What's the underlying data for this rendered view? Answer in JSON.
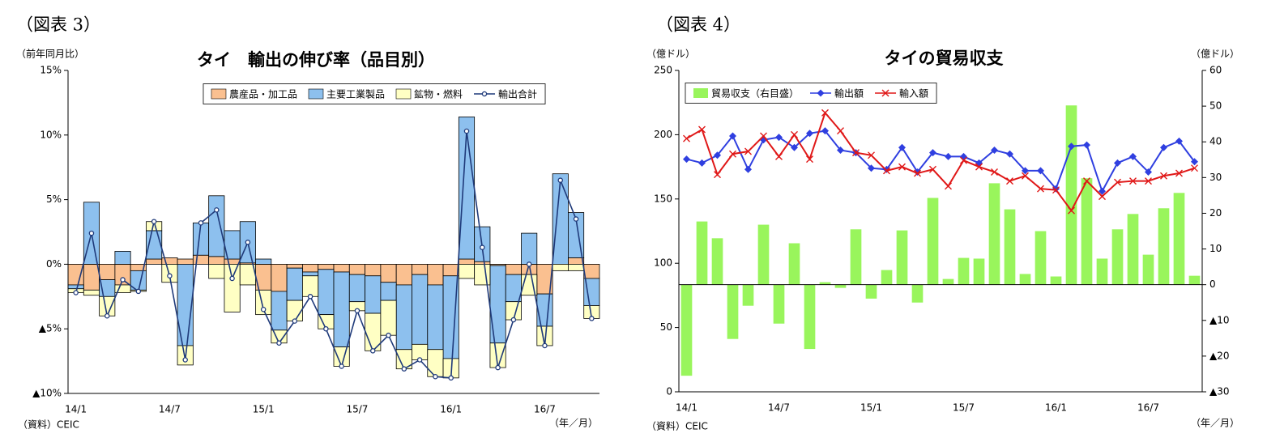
{
  "chart_data": [
    {
      "type": "bar",
      "stacked": true,
      "figure_label": "（図表 3）",
      "title": "タイ　輸出の伸び率（品目別）",
      "ylabel": "（前年同月比）",
      "xlabel": "（年／月）",
      "source": "（資料）CEIC",
      "legend": "top",
      "categories": [
        "14/1",
        null,
        null,
        null,
        null,
        null,
        "14/7",
        null,
        null,
        null,
        null,
        null,
        "15/1",
        null,
        null,
        null,
        null,
        null,
        "15/7",
        null,
        null,
        null,
        null,
        null,
        "16/1",
        null,
        null,
        null,
        null,
        null,
        "16/7",
        null,
        null,
        null
      ],
      "ylim": [
        -10,
        15
      ],
      "yticks": [
        {
          "value": -10,
          "label": "▲10%"
        },
        {
          "value": -5,
          "label": "▲5%"
        },
        {
          "value": 0,
          "label": "0%"
        },
        {
          "value": 5,
          "label": "5%"
        },
        {
          "value": 10,
          "label": "10%"
        },
        {
          "value": 15,
          "label": "15%"
        }
      ],
      "series": [
        {
          "name": "農産品・加工品",
          "type": "bar",
          "color": "#fac090",
          "values": [
            -1.6,
            -2.0,
            -1.2,
            -1.6,
            -0.5,
            0.4,
            0.5,
            0.4,
            0.7,
            0.6,
            0.4,
            0.1,
            -2.0,
            -2.1,
            -0.3,
            -0.6,
            -0.4,
            -0.6,
            -0.8,
            -0.9,
            -1.4,
            -1.6,
            -0.8,
            -1.6,
            -0.9,
            0.4,
            0.2,
            -0.1,
            -0.8,
            -0.8,
            -2.3,
            0.0,
            0.5,
            -1.1
          ]
        },
        {
          "name": "主要工業製品",
          "type": "bar",
          "color": "#8dc0ee",
          "values": [
            -0.3,
            4.8,
            -1.3,
            1.0,
            -1.5,
            2.2,
            0.0,
            -6.3,
            2.5,
            4.7,
            2.2,
            3.2,
            0.4,
            -3.0,
            -2.5,
            -0.3,
            -3.5,
            -5.8,
            -2.1,
            -2.9,
            -1.4,
            -5.0,
            -5.4,
            -5.0,
            -6.4,
            11.0,
            2.7,
            -6.0,
            -2.1,
            2.4,
            -2.5,
            7.0,
            3.5,
            -2.1
          ]
        },
        {
          "name": "鉱物・燃料",
          "type": "bar",
          "color": "#ffffc4",
          "values": [
            -0.3,
            -0.4,
            -1.5,
            -0.6,
            -0.1,
            0.7,
            -1.4,
            -1.5,
            0.0,
            -1.1,
            -3.7,
            -1.6,
            -1.9,
            -1.0,
            -1.6,
            -1.6,
            -1.1,
            -1.5,
            -0.7,
            -2.9,
            -2.7,
            -1.5,
            -1.2,
            -2.1,
            -1.5,
            -1.1,
            -1.6,
            -1.9,
            -1.4,
            -1.6,
            -1.5,
            -0.5,
            -0.5,
            -1.0
          ]
        },
        {
          "name": "輸出合計",
          "type": "line",
          "color": "#1f3a7a",
          "marker": "circle",
          "values": [
            -2.2,
            2.4,
            -4.0,
            -1.2,
            -2.1,
            3.3,
            -0.9,
            -7.4,
            3.2,
            4.2,
            -1.1,
            1.7,
            -3.5,
            -6.1,
            -4.4,
            -2.5,
            -5.0,
            -7.9,
            -3.6,
            -6.7,
            -5.5,
            -8.1,
            -7.4,
            -8.7,
            -8.8,
            10.3,
            1.3,
            -8.0,
            -4.3,
            0.0,
            -6.3,
            6.5,
            3.5,
            -4.2
          ]
        }
      ]
    },
    {
      "type": "bar",
      "stacked": false,
      "figure_label": "（図表 4）",
      "title": "タイの貿易収支",
      "ylabel": "（億ドル）",
      "y2label": "（億ドル）",
      "xlabel": "（年／月）",
      "source": "（資料）CEIC",
      "legend": "upper left",
      "categories": [
        "14/1",
        null,
        null,
        null,
        null,
        null,
        "14/7",
        null,
        null,
        null,
        null,
        null,
        "15/1",
        null,
        null,
        null,
        null,
        null,
        "15/7",
        null,
        null,
        null,
        null,
        null,
        "16/1",
        null,
        null,
        null,
        null,
        null,
        "16/7",
        null,
        null,
        null
      ],
      "ylim": [
        0,
        250
      ],
      "yticks": [
        0,
        50,
        100,
        150,
        200,
        250
      ],
      "y2lim": [
        -30,
        60
      ],
      "y2ticks": [
        {
          "value": -30,
          "label": "▲30"
        },
        {
          "value": -20,
          "label": "▲20"
        },
        {
          "value": -10,
          "label": "▲10"
        },
        0,
        10,
        20,
        30,
        40,
        50,
        60
      ],
      "series": [
        {
          "name": "貿易収支（右目盛）",
          "type": "bar",
          "axis": "y2",
          "color": "#99f55c",
          "values": [
            -25.5,
            17.7,
            13.0,
            -15.2,
            -5.9,
            16.8,
            -10.9,
            11.6,
            -18.0,
            0.7,
            -0.9,
            15.5,
            -3.9,
            4.1,
            15.2,
            -5.0,
            24.3,
            1.6,
            7.5,
            7.3,
            28.4,
            21.1,
            3.0,
            15.0,
            2.3,
            50.2,
            29.8,
            7.3,
            15.5,
            19.8,
            8.4,
            21.4,
            25.7,
            2.5
          ]
        },
        {
          "name": "輸出額",
          "type": "line",
          "color": "#2f3fe0",
          "marker": "diamond",
          "values": [
            181,
            178,
            184,
            199,
            173,
            196,
            198,
            190,
            201,
            203,
            188,
            186,
            174,
            173,
            190,
            171,
            186,
            183,
            183,
            178,
            188,
            185,
            172,
            172,
            158,
            191,
            192,
            156,
            178,
            183,
            171,
            190,
            195,
            179
          ]
        },
        {
          "name": "輸入額",
          "type": "line",
          "color": "#e01818",
          "marker": "x",
          "values": [
            197,
            204,
            169,
            185,
            187,
            199,
            183,
            200,
            181,
            217,
            203,
            186,
            184,
            172,
            175,
            170,
            173,
            160,
            180,
            175,
            171,
            164,
            168,
            158,
            157,
            141,
            164,
            152,
            163,
            164,
            164,
            168,
            170,
            174
          ]
        }
      ]
    }
  ]
}
